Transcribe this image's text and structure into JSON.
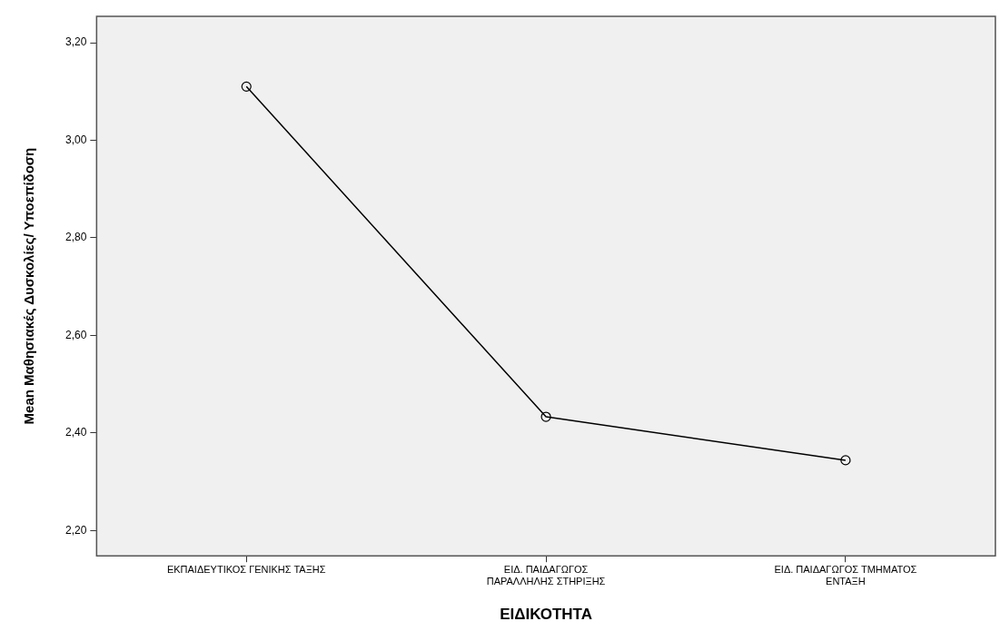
{
  "chart_data": {
    "type": "line",
    "xlabel": "ΕΙΔΙΚΟΤΗΤΑ",
    "ylabel": "Mean Μαθησιακές Δυσκολίες/ Υποεπίδοση",
    "categories": [
      "ΕΚΠΑΙΔΕΥΤΙΚΟΣ ΓΕΝΙΚΗΣ ΤΑΞΗΣ",
      "ΕΙΔ. ΠΑΙΔΑΓΩΓΟΣ\nΠΑΡΑΛΛΗΛΗΣ ΣΤΗΡΙΞΗΣ",
      "ΕΙΔ. ΠΑΙΔΑΓΩΓΟΣ ΤΜΗΜΑΤΟΣ\nΕΝΤΑΞΗ"
    ],
    "values": [
      3.11,
      2.433,
      2.344
    ],
    "color": "#000000",
    "marker": "circle",
    "line_style": "solid",
    "grid": false,
    "legend": false,
    "ylim": [
      2.148,
      3.254
    ],
    "yticks": [
      {
        "value": 2.2,
        "label": "2,20"
      },
      {
        "value": 2.4,
        "label": "2,40"
      },
      {
        "value": 2.6,
        "label": "2,60"
      },
      {
        "value": 2.8,
        "label": "2,80"
      },
      {
        "value": 3.0,
        "label": "3,00"
      },
      {
        "value": 3.2,
        "label": "3,20"
      }
    ]
  }
}
